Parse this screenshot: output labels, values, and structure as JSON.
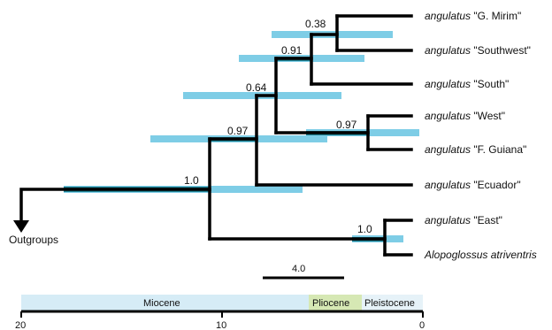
{
  "taxa": [
    {
      "genus_part": "angulatus",
      "rest": " \"G. Mirim\""
    },
    {
      "genus_part": "angulatus",
      "rest": " \"Southwest\""
    },
    {
      "genus_part": "angulatus",
      "rest": " \"South\""
    },
    {
      "genus_part": "angulatus",
      "rest": " \"West\""
    },
    {
      "genus_part": "angulatus",
      "rest": " \"F. Guiana\""
    },
    {
      "genus_part": "angulatus",
      "rest": " \"Ecuador\""
    },
    {
      "genus_part": "angulatus",
      "rest": " \"East\""
    },
    {
      "genus_part": "Alopoglossus atriventris",
      "rest": ""
    }
  ],
  "outgroups_label": "Outgroups",
  "support_values": [
    "0.38",
    "0.91",
    "0.64",
    "0.97",
    "0.97",
    "1.0",
    "1.0"
  ],
  "scale_bar": {
    "label": "4.0",
    "value_my": 4.0
  },
  "time_axis": {
    "ticks": [
      "20",
      "10",
      "0"
    ],
    "range_my": [
      20,
      0
    ]
  },
  "epochs": [
    {
      "name": "Miocene",
      "start_my": 20,
      "end_my": 5.3
    },
    {
      "name": "Pliocene",
      "start_my": 5.3,
      "end_my": 2.6
    },
    {
      "name": "Pleistocene",
      "start_my": 2.6,
      "end_my": 0
    }
  ],
  "colors": {
    "branch": "#000000",
    "hpd_interval": "#7ecde6",
    "hpd_overlap": "#1f7f8f",
    "miocene": "#d6ecf6",
    "pliocene": "#d6e8b4",
    "pleistocene": "#e6f2f8"
  }
}
